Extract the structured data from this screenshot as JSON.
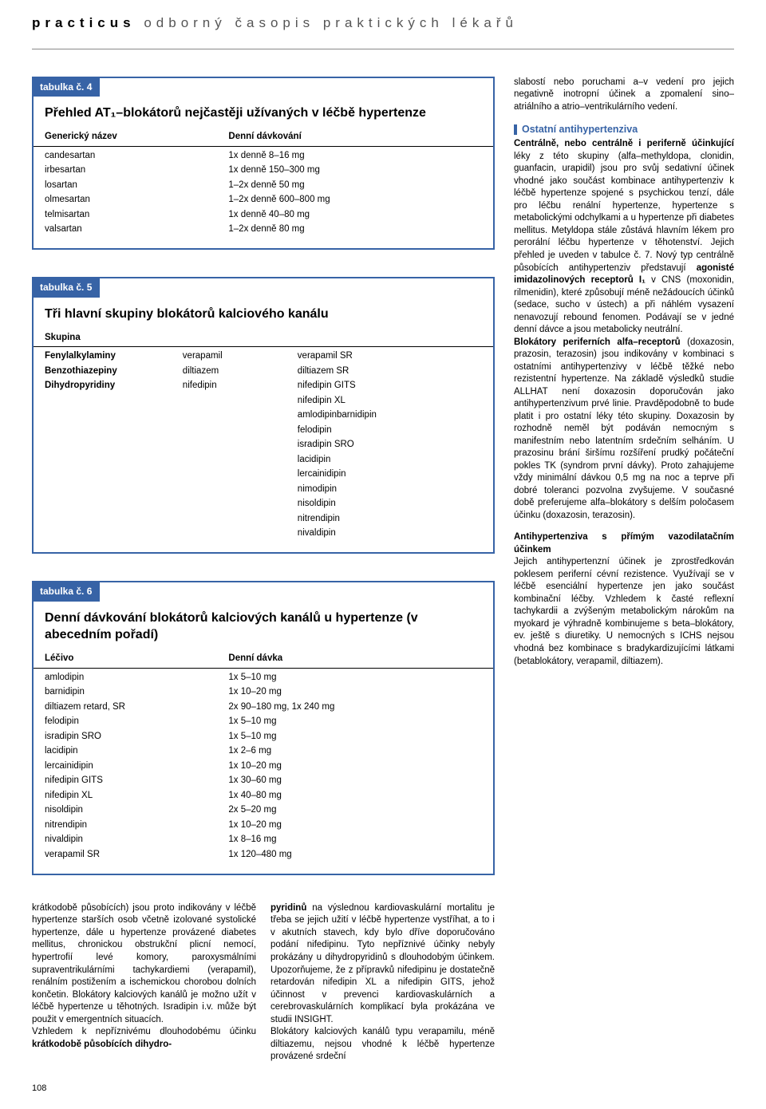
{
  "journal": {
    "brand": "practicus",
    "subtitle": "odborný časopis praktických lékařů"
  },
  "colors": {
    "accent": "#3763a6",
    "text": "#000000",
    "bg": "#ffffff",
    "header_grey": "#555555"
  },
  "table4": {
    "tab": "tabulka č. 4",
    "title": "Přehled AT₁–blokátorů nejčastěji užívaných v léčbě hypertenze",
    "head": [
      "Generický název",
      "Denní dávkování"
    ],
    "rows": [
      [
        "candesartan",
        "1x denně 8–16 mg"
      ],
      [
        "irbesartan",
        "1x denně 150–300 mg"
      ],
      [
        "losartan",
        "1–2x denně 50 mg"
      ],
      [
        "olmesartan",
        "1–2x denně 600–800 mg"
      ],
      [
        "telmisartan",
        "1x denně 40–80 mg"
      ],
      [
        "valsartan",
        "1–2x denně 80 mg"
      ]
    ]
  },
  "table5": {
    "tab": "tabulka č. 5",
    "title": "Tři hlavní skupiny blokátorů kalciového kanálu",
    "head_single": "Skupina",
    "rows": [
      [
        "Fenylalkylaminy",
        "verapamil",
        "verapamil SR"
      ],
      [
        "Benzothiazepiny",
        "diltiazem",
        "diltiazem SR"
      ],
      [
        "Dihydropyridiny",
        "nifedipin",
        "nifedipin GITS"
      ],
      [
        "",
        "",
        "nifedipin XL"
      ],
      [
        "",
        "",
        "amlodipinbarnidipin"
      ],
      [
        "",
        "",
        "felodipin"
      ],
      [
        "",
        "",
        "isradipin SRO"
      ],
      [
        "",
        "",
        "lacidipin"
      ],
      [
        "",
        "",
        "lercainidipin"
      ],
      [
        "",
        "",
        "nimodipin"
      ],
      [
        "",
        "",
        "nisoldipin"
      ],
      [
        "",
        "",
        "nitrendipin"
      ],
      [
        "",
        "",
        "nivaldipin"
      ]
    ]
  },
  "table6": {
    "tab": "tabulka č. 6",
    "title": "Denní dávkování blokátorů kalciových kanálů u hypertenze (v abecedním pořadí)",
    "head": [
      "Léčivo",
      "Denní dávka"
    ],
    "rows": [
      [
        "amlodipin",
        "1x 5–10 mg"
      ],
      [
        "barnidipin",
        "1x 10–20 mg"
      ],
      [
        "diltiazem retard, SR",
        "2x 90–180 mg, 1x 240 mg"
      ],
      [
        "felodipin",
        "1x 5–10 mg"
      ],
      [
        "isradipin SRO",
        "1x 5–10 mg"
      ],
      [
        "lacidipin",
        "1x 2–6 mg"
      ],
      [
        "lercainidipin",
        "1x 10–20 mg"
      ],
      [
        "nifedipin GITS",
        "1x 30–60 mg"
      ],
      [
        "nifedipin XL",
        "1x 40–80 mg"
      ],
      [
        "nisoldipin",
        "2x 5–20 mg"
      ],
      [
        "nitrendipin",
        "1x 10–20 mg"
      ],
      [
        "nivaldipin",
        "1x  8–16 mg"
      ],
      [
        "verapamil SR",
        "1x 120–480 mg"
      ]
    ]
  },
  "bodyLeft": "krátkodobě působících) jsou proto indikovány v léčbě hypertenze starších osob včetně izolované systolické hypertenze, dále u hypertenze provázené diabetes mellitus, chronickou obstrukční plicní nemocí, hypertrofií levé komory, paroxysmálními supraventrikulárními tachykardiemi (verapamil), renálním postižením a ischemickou chorobou dolních končetin. Blokátory kalciových kanálů je možno užít v léčbě hypertenze u těhotných. Isradipin i.v. může být použit v emergentních situacích.",
  "bodyLeft2a": "Vzhledem k nepříznivému dlouhodobému účinku ",
  "bodyLeft2b": "krátkodobě působících dihydro-",
  "bodyMid1a": "pyridinů",
  "bodyMid1b": " na výslednou kardiovaskulární mortalitu je třeba se jejich užití v léčbě hypertenze vystříhat, a to i v akutních stavech, kdy bylo dříve doporučováno podání nifedipinu. Tyto nepříznivé účinky nebyly prokázány u dihydropyridinů s dlouhodobým účinkem. Upozorňujeme, že z přípravků nifedipinu je dostatečně retardován nifedipin XL a nifedipin GITS, jehož účinnost v prevenci kardiovaskulárních a cerebrovaskulárních komplikací byla prokázána ve studii INSIGHT.",
  "bodyMid2": "Blokátory kalciových kanálů typu verapamilu, méně diltiazemu, nejsou vhodné k léčbě hypertenze provázené srdeční",
  "rightTop": "slabostí nebo poruchami a–v vedení pro jejich negativně inotropní účinek a zpomalení sino–atriálního a atrio–ventrikulárního vedení.",
  "rightHead1": "Ostatní antihypertenziva",
  "rightSub1": "Centrálně, nebo centrálně i periferně účinkující",
  "rightP1a": " léky z této skupiny (alfa–methyldopa, clonidin, guanfacin, urapidil) jsou pro svůj sedativní účinek vhodné jako součást kombinace antihypertenziv k léčbě hypertenze spojené s psychickou tenzí, dále pro léčbu renální hypertenze, hypertenze s metabolickými odchylkami a u hypertenze při diabetes mellitus. Metyldopa stále zůstává hlavním lékem pro perorální léčbu hypertenze v těhotenství. Jejich přehled je uveden v tabulce č. 7.",
  "rightP1b1": "Nový typ centrálně působících antihypertenziv představují ",
  "rightP1b2": "agonisté imidazolinových receptorů I₁",
  "rightP1b3": " v CNS (moxonidin, rilmenidin), které způsobují méně nežádoucích účinků (sedace, sucho v ústech) a při náhlém vysazení nenavozují rebound fenomen. Podávají se v jedné denní dávce a jsou metabolicky neutrální.",
  "rightSub2": "Blokátory periferních alfa–receptorů",
  "rightP2": " (doxazosin, prazosin, terazosin) jsou indikovány v kombinaci s ostatními antihypertenzivy v léčbě těžké nebo rezistentní hypertenze. Na základě výsledků studie ALLHAT není doxazosin doporučován jako antihypertenzivum prvé linie. Pravděpodobně to bude platit i pro ostatní léky této skupiny. Doxazosin by rozhodně neměl být podáván nemocným s manifestním nebo latentním srdečním selháním. U prazosinu brání širšímu rozšíření prudký počáteční pokles TK (syndrom první dávky). Proto zahajujeme vždy minimální dávkou 0,5 mg na noc a teprve při dobré toleranci pozvolna zvyšujeme. V současné době preferujeme alfa–blokátory s delším poločasem účinku (doxazosin, terazosin).",
  "rightSub3": "Antihypertenziva s přímým vazodilatačním účinkem",
  "rightP3": "Jejich antihypertenzní účinek je zprostředkován poklesem periferní cévní rezistence. Využívají se v léčbě esenciální hypertenze jen jako součást kombinační léčby. Vzhledem k časté reflexní tachykardii a zvýšeným metabolickým nárokům na myokard je výhradně kombinujeme s beta–blokátory, ev. ještě s diuretiky. U nemocných s ICHS nejsou vhodná bez kombinace s bradykardizujícími látkami (betablokátory, verapamil, diltiazem).",
  "pageNumber": "108"
}
